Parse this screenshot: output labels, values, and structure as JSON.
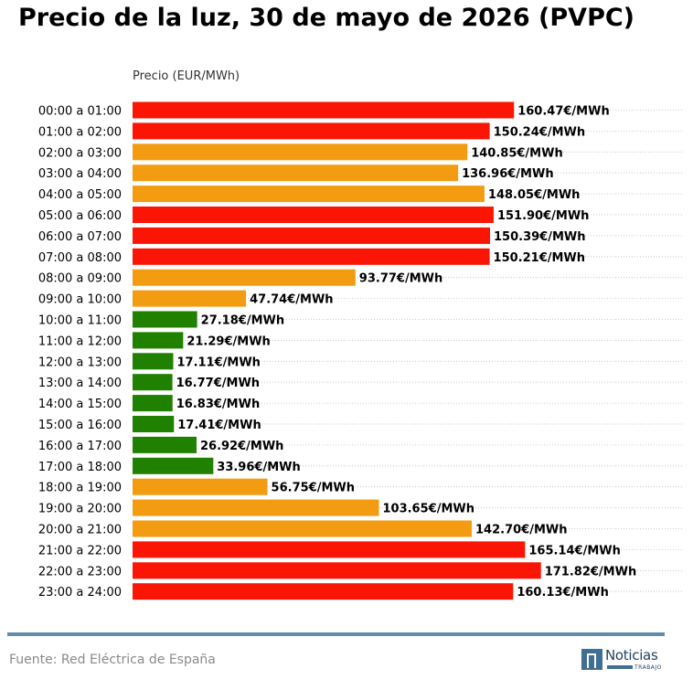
{
  "title": "Precio de la luz, 30 de mayo de 2026 (PVPC)",
  "source": "Fuente: Red Eléctrica de España",
  "logo": {
    "name": "Noticias",
    "tagline": "TRABAJO"
  },
  "colors": {
    "high": "#fa1505",
    "medium": "#f39c12",
    "low": "#208000",
    "rule": "#5e8ea8"
  },
  "chart_data": {
    "type": "bar",
    "orientation": "horizontal",
    "title": "Precio de la luz, 30 de mayo de 2026 (PVPC)",
    "xlabel": "Precio (EUR/MWh)",
    "ylabel": "",
    "xlim": [
      0,
      180
    ],
    "grid": "horizontal dotted lines",
    "categories": [
      "00:00 a 01:00",
      "01:00 a 02:00",
      "02:00 a 03:00",
      "03:00 a 04:00",
      "04:00 a 05:00",
      "05:00 a 06:00",
      "06:00 a 07:00",
      "07:00 a 08:00",
      "08:00 a 09:00",
      "09:00 a 10:00",
      "10:00 a 11:00",
      "11:00 a 12:00",
      "12:00 a 13:00",
      "13:00 a 14:00",
      "14:00 a 15:00",
      "15:00 a 16:00",
      "16:00 a 17:00",
      "17:00 a 18:00",
      "18:00 a 19:00",
      "19:00 a 20:00",
      "20:00 a 21:00",
      "21:00 a 22:00",
      "22:00 a 23:00",
      "23:00 a 24:00"
    ],
    "values": [
      160.47,
      150.24,
      140.85,
      136.96,
      148.05,
      151.9,
      150.39,
      150.21,
      93.77,
      47.74,
      27.18,
      21.29,
      17.11,
      16.77,
      16.83,
      17.41,
      26.92,
      33.96,
      56.75,
      103.65,
      142.7,
      165.14,
      171.82,
      160.13
    ],
    "labels": [
      "160.47€/MWh",
      "150.24€/MWh",
      "140.85€/MWh",
      "136.96€/MWh",
      "148.05€/MWh",
      "151.90€/MWh",
      "150.39€/MWh",
      "150.21€/MWh",
      "93.77€/MWh",
      "47.74€/MWh",
      "27.18€/MWh",
      "21.29€/MWh",
      "17.11€/MWh",
      "16.77€/MWh",
      "16.83€/MWh",
      "17.41€/MWh",
      "26.92€/MWh",
      "33.96€/MWh",
      "56.75€/MWh",
      "103.65€/MWh",
      "142.70€/MWh",
      "165.14€/MWh",
      "171.82€/MWh",
      "160.13€/MWh"
    ],
    "levels": [
      "high",
      "high",
      "medium",
      "medium",
      "medium",
      "high",
      "high",
      "high",
      "medium",
      "medium",
      "low",
      "low",
      "low",
      "low",
      "low",
      "low",
      "low",
      "low",
      "medium",
      "medium",
      "medium",
      "high",
      "high",
      "high"
    ]
  }
}
